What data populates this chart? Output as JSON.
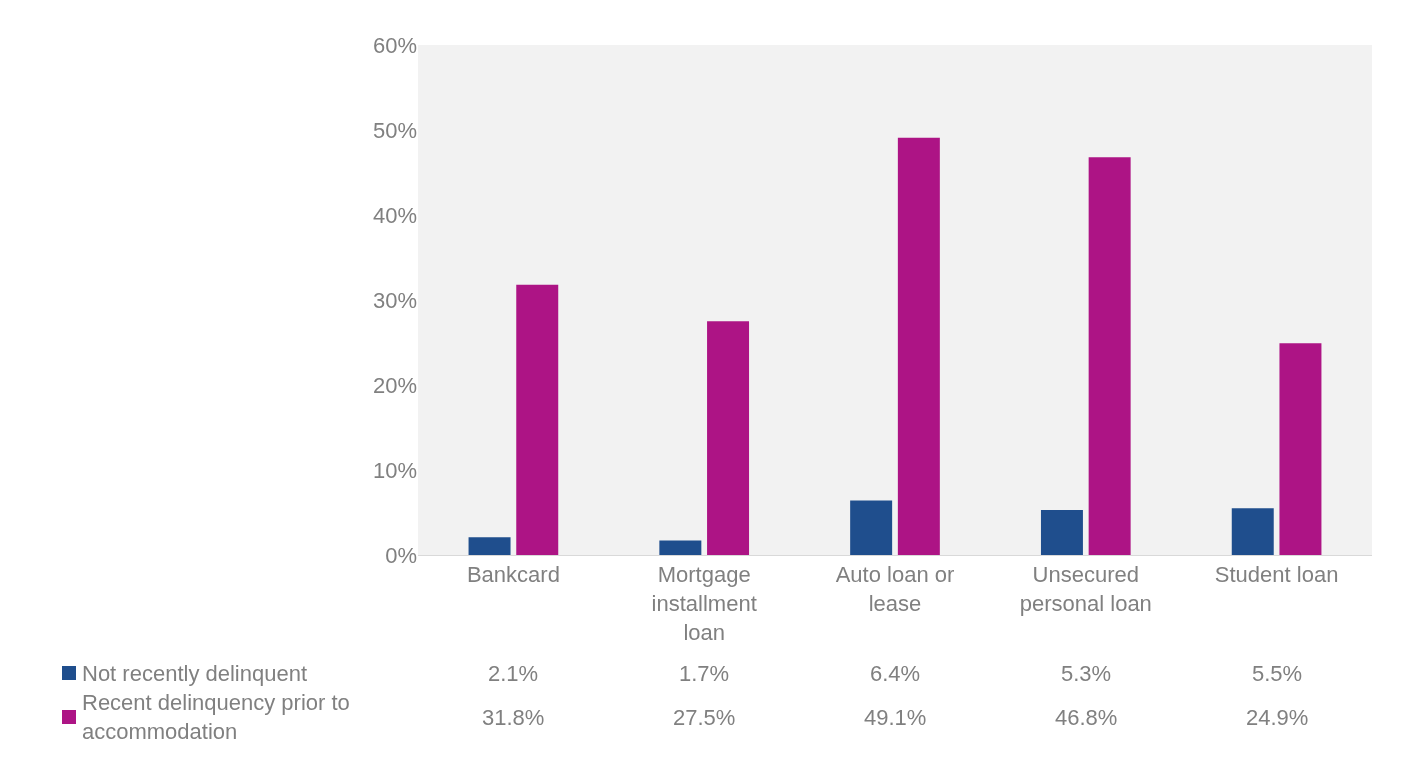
{
  "chart_data": {
    "type": "bar",
    "categories": [
      "Bankcard",
      "Mortgage installment loan",
      "Auto loan or lease",
      "Unsecured personal loan",
      "Student loan"
    ],
    "series": [
      {
        "name": "Not recently delinquent",
        "color": "#1f4e8d",
        "values": [
          2.1,
          1.7,
          6.4,
          5.3,
          5.5
        ],
        "value_labels": [
          "2.1%",
          "1.7%",
          "6.4%",
          "5.3%",
          "5.5%"
        ]
      },
      {
        "name": "Recent delinquency prior to accommodation",
        "color": "#ad1485",
        "values": [
          31.8,
          27.5,
          49.1,
          46.8,
          24.9
        ],
        "value_labels": [
          "31.8%",
          "27.5%",
          "49.1%",
          "46.8%",
          "24.9%"
        ]
      }
    ],
    "ylim": [
      0,
      60
    ],
    "yticks": [
      {
        "value": 0,
        "label": "0%"
      },
      {
        "value": 10,
        "label": "10%"
      },
      {
        "value": 20,
        "label": "20%"
      },
      {
        "value": 30,
        "label": "30%"
      },
      {
        "value": 40,
        "label": "40%"
      },
      {
        "value": 50,
        "label": "50%"
      },
      {
        "value": 60,
        "label": "60%"
      }
    ],
    "grid": false,
    "legend": "bottom left"
  }
}
